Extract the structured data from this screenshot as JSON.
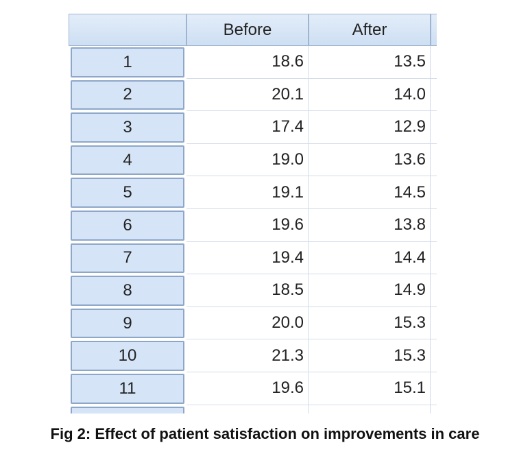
{
  "table": {
    "columns": [
      "Before",
      "After"
    ],
    "rows": [
      [
        "1",
        "18.6",
        "13.5"
      ],
      [
        "2",
        "20.1",
        "14.0"
      ],
      [
        "3",
        "17.4",
        "12.9"
      ],
      [
        "4",
        "19.0",
        "13.6"
      ],
      [
        "5",
        "19.1",
        "14.5"
      ],
      [
        "6",
        "19.6",
        "13.8"
      ],
      [
        "7",
        "19.4",
        "14.4"
      ],
      [
        "8",
        "18.5",
        "14.9"
      ],
      [
        "9",
        "20.0",
        "15.3"
      ],
      [
        "10",
        "21.3",
        "15.3"
      ],
      [
        "11",
        "19.6",
        "15.1"
      ]
    ]
  },
  "caption": "Fig 2: Effect of patient satisfaction on improvements in care"
}
